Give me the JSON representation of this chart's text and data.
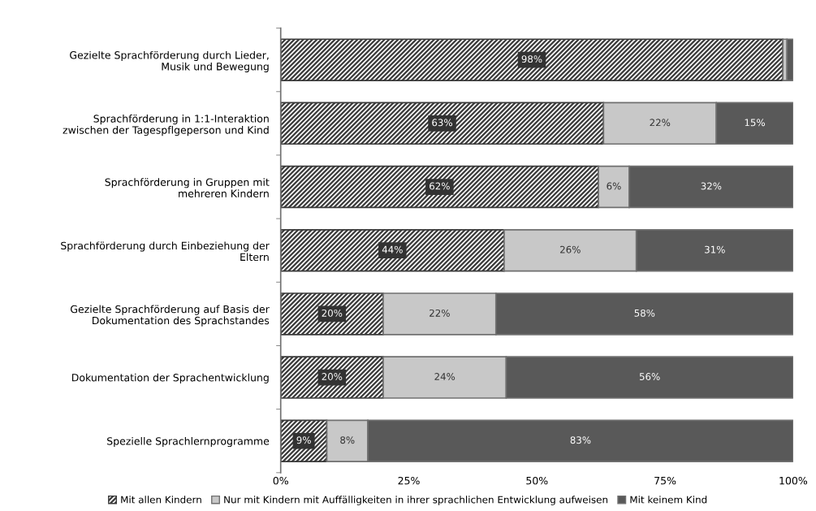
{
  "chart_data": {
    "type": "bar",
    "orientation": "horizontal",
    "stacked": true,
    "categories": [
      "Gezielte Sprachförderung durch Lieder, Musik und Bewegung",
      "Sprachförderung in 1:1-Interaktion zwischen der Tagespflgeperson und Kind",
      "Sprachförderung in Gruppen mit mehreren Kindern",
      "Sprachförderung durch Einbeziehung der Eltern",
      "Gezielte Sprachförderung auf Basis der Dokumentation des Sprachstandes",
      "Dokumentation der Sprachentwicklung",
      "Spezielle Sprachlernprogramme"
    ],
    "series": [
      {
        "name": "Mit allen Kindern",
        "color": "#3a3a3a",
        "values": [
          98,
          63,
          62,
          43.6,
          20,
          20,
          9
        ],
        "value_labels": [
          "98%",
          "63%",
          "62%",
          "44%",
          "20%",
          "20%",
          "9%"
        ]
      },
      {
        "name": "Nur mit Kindern mit Auffälligkeiten in ihrer sprachlichen Entwicklung aufweisen",
        "color": "#c8c8c8",
        "values": [
          0.8,
          22,
          6,
          25.8,
          22,
          24,
          8
        ],
        "value_labels": [
          null,
          "22%",
          "6%",
          "26%",
          "22%",
          "24%",
          "8%"
        ]
      },
      {
        "name": "Mit keinem Kind",
        "color": "#595959",
        "values": [
          1.2,
          15,
          32,
          30.6,
          58,
          56,
          83
        ],
        "value_labels": [
          null,
          "15%",
          "32%",
          "31%",
          "58%",
          "56%",
          "83%"
        ]
      }
    ],
    "xlim": [
      0,
      100
    ],
    "xticks": [
      {
        "value": 0,
        "label": "0%"
      },
      {
        "value": 25,
        "label": "25%"
      },
      {
        "value": 50,
        "label": "50%"
      },
      {
        "value": 75,
        "label": "75%"
      },
      {
        "value": 100,
        "label": "100%"
      }
    ],
    "grid": false,
    "legend": "bottom"
  }
}
